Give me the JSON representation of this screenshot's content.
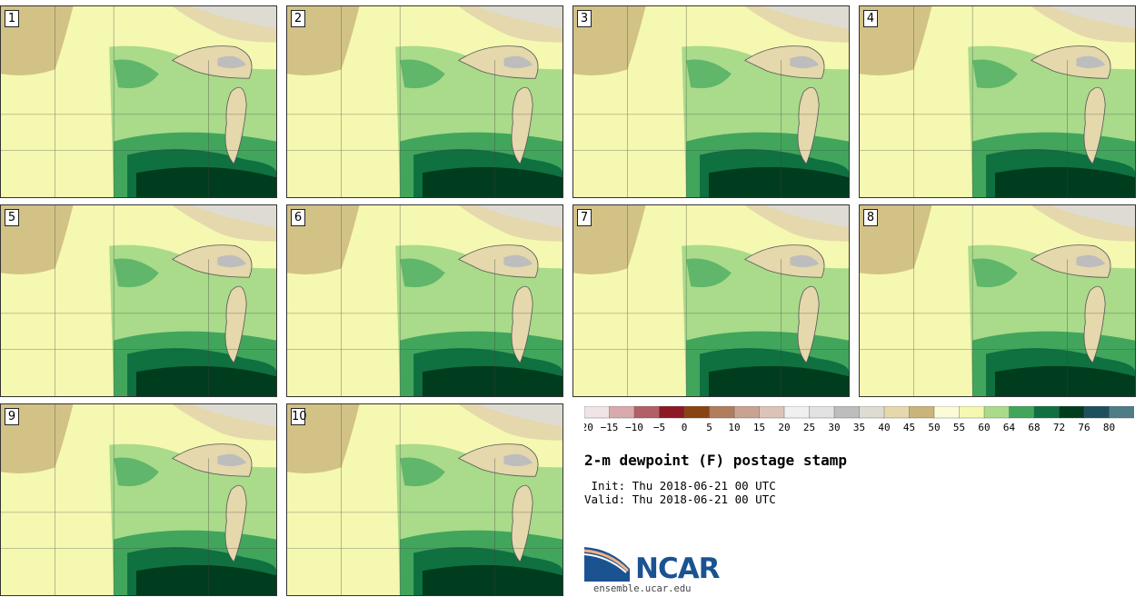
{
  "panels": [
    {
      "label": "1"
    },
    {
      "label": "2"
    },
    {
      "label": "3"
    },
    {
      "label": "4"
    },
    {
      "label": "5"
    },
    {
      "label": "6"
    },
    {
      "label": "7"
    },
    {
      "label": "8"
    },
    {
      "label": "9"
    },
    {
      "label": "10"
    }
  ],
  "colorbar": {
    "ticks": [
      "-20",
      "-15",
      "-10",
      "-5",
      "0",
      "5",
      "10",
      "15",
      "20",
      "25",
      "30",
      "35",
      "40",
      "45",
      "50",
      "55",
      "60",
      "64",
      "68",
      "72",
      "76",
      "80"
    ],
    "colors": [
      "#f1e4e7",
      "#d9a9ae",
      "#b35f67",
      "#8b1a25",
      "#8a4413",
      "#b07d5e",
      "#c9a291",
      "#dcc3b8",
      "#f0f0f0",
      "#e2e2e2",
      "#bdbdbd",
      "#dedcd2",
      "#e4d8ac",
      "#c9b47c",
      "#fbfbd8",
      "#f5f8b0",
      "#a9db8a",
      "#41a65c",
      "#0f7040",
      "#003c1e",
      "#1d4f5e",
      "#4f7d85"
    ]
  },
  "title": "2-m dewpoint (F) postage stamp",
  "init": " Init: Thu 2018-06-21 00 UTC",
  "valid": "Valid: Thu 2018-06-21 00 UTC",
  "logo": {
    "text": "NCAR",
    "url": "ensemble.ucar.edu"
  }
}
